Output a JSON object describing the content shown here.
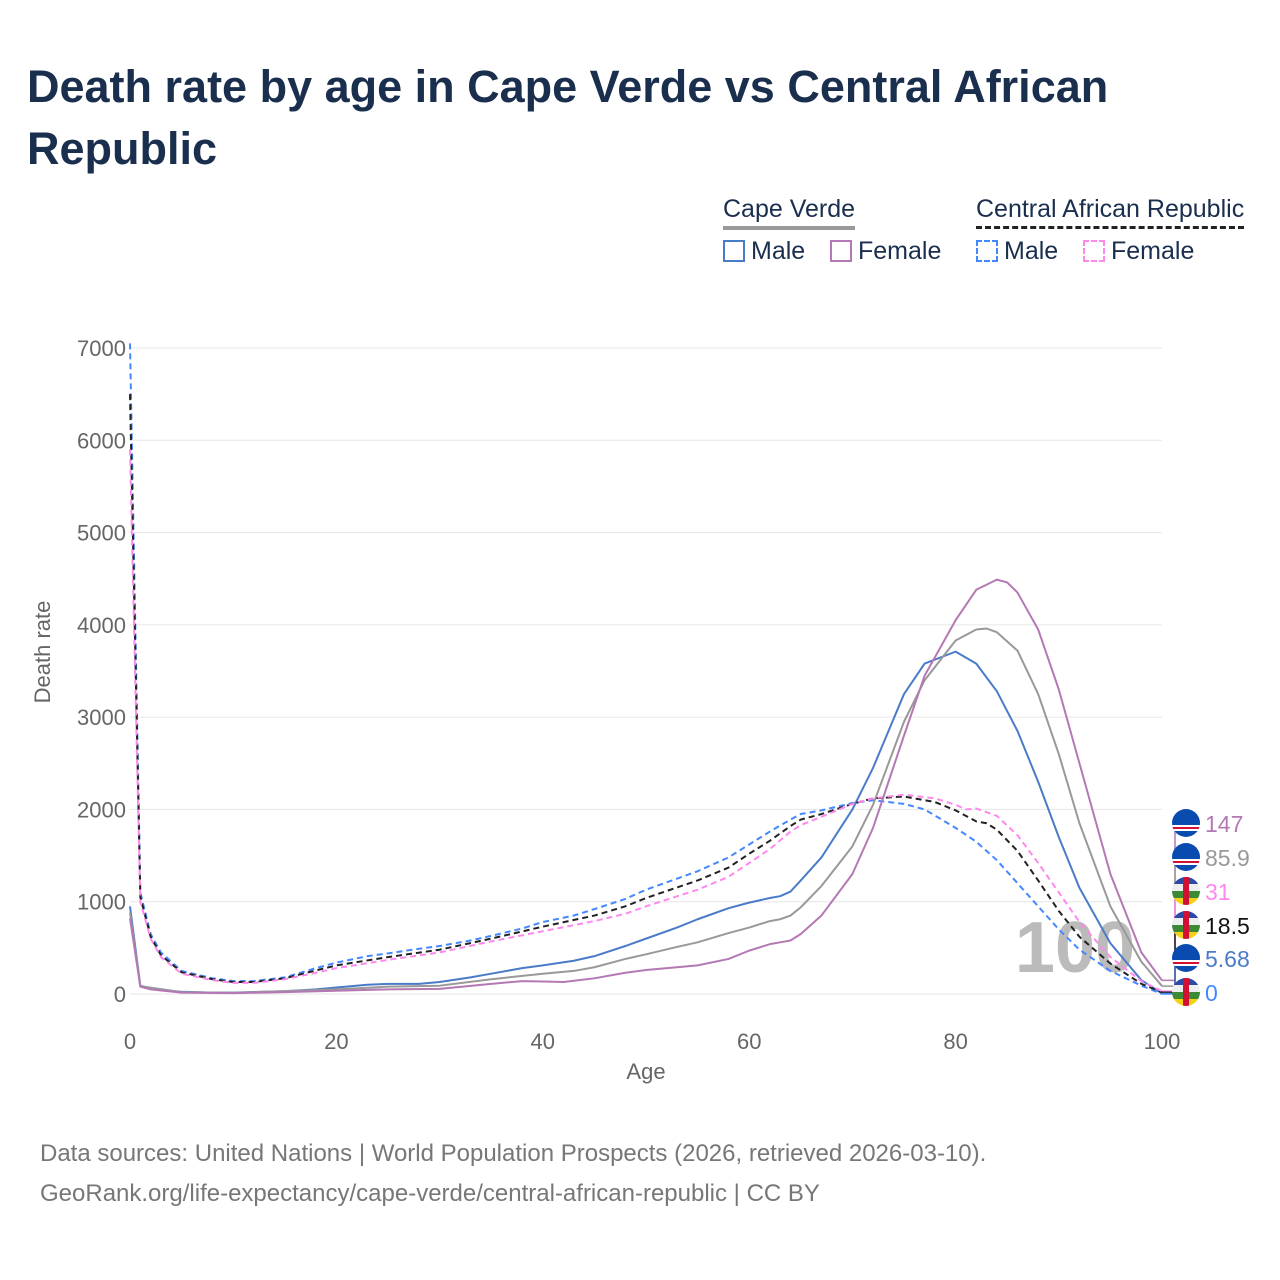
{
  "title": "Death rate by age in Cape Verde vs Central African Republic",
  "legend": {
    "groups": [
      {
        "name": "Cape Verde",
        "male": "Male",
        "female": "Female"
      },
      {
        "name": "Central African Republic",
        "male": "Male",
        "female": "Female"
      }
    ]
  },
  "footer": {
    "line1": "Data sources: United Nations | World Population Prospects (2026, retrieved 2026-03-10).",
    "line2": "GeoRank.org/life-expectancy/cape-verde/central-african-republic | CC BY"
  },
  "hover_label": "100",
  "chart_data": {
    "type": "line",
    "xlabel": "Age",
    "ylabel": "Death rate",
    "xlim": [
      0,
      100
    ],
    "ylim": [
      0,
      7000
    ],
    "xticks": [
      0,
      20,
      40,
      60,
      80,
      100
    ],
    "yticks": [
      0,
      1000,
      2000,
      3000,
      4000,
      5000,
      6000,
      7000
    ],
    "grid": "horizontal",
    "series": [
      {
        "name": "Cape Verde Female",
        "color": "#b478b4",
        "dash": false,
        "end_label": "147",
        "flag": "cv",
        "points": [
          [
            0,
            820
          ],
          [
            1,
            80
          ],
          [
            2,
            50
          ],
          [
            5,
            15
          ],
          [
            10,
            10
          ],
          [
            15,
            20
          ],
          [
            20,
            35
          ],
          [
            25,
            50
          ],
          [
            30,
            55
          ],
          [
            35,
            110
          ],
          [
            38,
            140
          ],
          [
            40,
            135
          ],
          [
            42,
            130
          ],
          [
            45,
            170
          ],
          [
            48,
            230
          ],
          [
            50,
            260
          ],
          [
            53,
            290
          ],
          [
            55,
            310
          ],
          [
            58,
            380
          ],
          [
            60,
            470
          ],
          [
            62,
            540
          ],
          [
            63,
            560
          ],
          [
            64,
            580
          ],
          [
            65,
            650
          ],
          [
            67,
            850
          ],
          [
            70,
            1300
          ],
          [
            72,
            1800
          ],
          [
            75,
            2800
          ],
          [
            77,
            3450
          ],
          [
            80,
            4050
          ],
          [
            82,
            4380
          ],
          [
            84,
            4490
          ],
          [
            85,
            4460
          ],
          [
            86,
            4350
          ],
          [
            88,
            3950
          ],
          [
            90,
            3300
          ],
          [
            92,
            2500
          ],
          [
            95,
            1300
          ],
          [
            98,
            450
          ],
          [
            100,
            147
          ]
        ]
      },
      {
        "name": "Cape Verde",
        "color": "#999999",
        "dash": false,
        "end_label": "85.9",
        "flag": "cv",
        "points": [
          [
            0,
            880
          ],
          [
            1,
            85
          ],
          [
            5,
            20
          ],
          [
            10,
            12
          ],
          [
            20,
            50
          ],
          [
            25,
            80
          ],
          [
            30,
            90
          ],
          [
            35,
            160
          ],
          [
            40,
            220
          ],
          [
            43,
            250
          ],
          [
            45,
            290
          ],
          [
            48,
            380
          ],
          [
            50,
            430
          ],
          [
            53,
            510
          ],
          [
            55,
            560
          ],
          [
            58,
            660
          ],
          [
            60,
            720
          ],
          [
            62,
            790
          ],
          [
            63,
            810
          ],
          [
            64,
            850
          ],
          [
            65,
            940
          ],
          [
            67,
            1170
          ],
          [
            70,
            1600
          ],
          [
            72,
            2050
          ],
          [
            75,
            2950
          ],
          [
            77,
            3400
          ],
          [
            80,
            3830
          ],
          [
            82,
            3950
          ],
          [
            83,
            3960
          ],
          [
            84,
            3920
          ],
          [
            86,
            3720
          ],
          [
            88,
            3250
          ],
          [
            90,
            2600
          ],
          [
            92,
            1850
          ],
          [
            95,
            950
          ],
          [
            98,
            350
          ],
          [
            100,
            85.9
          ]
        ]
      },
      {
        "name": "Central African Republic Female",
        "color": "#ff88ee",
        "dash": true,
        "end_label": "31",
        "flag": "car",
        "points": [
          [
            0,
            5900
          ],
          [
            1,
            1000
          ],
          [
            2,
            600
          ],
          [
            3,
            400
          ],
          [
            5,
            220
          ],
          [
            8,
            150
          ],
          [
            10,
            120
          ],
          [
            12,
            120
          ],
          [
            15,
            160
          ],
          [
            18,
            230
          ],
          [
            20,
            280
          ],
          [
            25,
            370
          ],
          [
            30,
            450
          ],
          [
            35,
            570
          ],
          [
            40,
            680
          ],
          [
            45,
            790
          ],
          [
            48,
            870
          ],
          [
            50,
            950
          ],
          [
            55,
            1130
          ],
          [
            58,
            1270
          ],
          [
            60,
            1420
          ],
          [
            62,
            1570
          ],
          [
            64,
            1760
          ],
          [
            65,
            1830
          ],
          [
            67,
            1920
          ],
          [
            70,
            2060
          ],
          [
            72,
            2120
          ],
          [
            75,
            2160
          ],
          [
            78,
            2120
          ],
          [
            80,
            2050
          ],
          [
            81,
            2000
          ],
          [
            82,
            2010
          ],
          [
            84,
            1930
          ],
          [
            86,
            1720
          ],
          [
            88,
            1420
          ],
          [
            90,
            1100
          ],
          [
            92,
            780
          ],
          [
            95,
            400
          ],
          [
            98,
            140
          ],
          [
            100,
            31
          ]
        ]
      },
      {
        "name": "Central African Republic",
        "color": "#222222",
        "dash": true,
        "end_label": "18.5",
        "flag": "car",
        "points": [
          [
            0,
            6500
          ],
          [
            1,
            1050
          ],
          [
            2,
            620
          ],
          [
            3,
            420
          ],
          [
            5,
            235
          ],
          [
            8,
            160
          ],
          [
            10,
            130
          ],
          [
            12,
            130
          ],
          [
            15,
            170
          ],
          [
            18,
            255
          ],
          [
            20,
            310
          ],
          [
            25,
            400
          ],
          [
            30,
            480
          ],
          [
            35,
            600
          ],
          [
            40,
            730
          ],
          [
            45,
            850
          ],
          [
            48,
            950
          ],
          [
            50,
            1040
          ],
          [
            55,
            1230
          ],
          [
            58,
            1370
          ],
          [
            60,
            1520
          ],
          [
            62,
            1660
          ],
          [
            64,
            1820
          ],
          [
            65,
            1890
          ],
          [
            67,
            1950
          ],
          [
            70,
            2060
          ],
          [
            72,
            2120
          ],
          [
            75,
            2140
          ],
          [
            78,
            2080
          ],
          [
            80,
            1990
          ],
          [
            82,
            1870
          ],
          [
            83,
            1850
          ],
          [
            84,
            1780
          ],
          [
            86,
            1550
          ],
          [
            88,
            1230
          ],
          [
            90,
            900
          ],
          [
            92,
            620
          ],
          [
            95,
            330
          ],
          [
            98,
            110
          ],
          [
            100,
            18.5
          ]
        ]
      },
      {
        "name": "Cape Verde Male",
        "color": "#4a7bc8",
        "dash": false,
        "end_label": "5.68",
        "flag": "cv",
        "points": [
          [
            0,
            950
          ],
          [
            1,
            90
          ],
          [
            2,
            60
          ],
          [
            3,
            40
          ],
          [
            5,
            25
          ],
          [
            8,
            15
          ],
          [
            10,
            15
          ],
          [
            15,
            30
          ],
          [
            18,
            50
          ],
          [
            20,
            70
          ],
          [
            23,
            100
          ],
          [
            25,
            110
          ],
          [
            28,
            110
          ],
          [
            30,
            130
          ],
          [
            33,
            180
          ],
          [
            35,
            220
          ],
          [
            38,
            280
          ],
          [
            40,
            310
          ],
          [
            43,
            360
          ],
          [
            45,
            410
          ],
          [
            48,
            520
          ],
          [
            50,
            600
          ],
          [
            53,
            720
          ],
          [
            55,
            810
          ],
          [
            58,
            930
          ],
          [
            60,
            990
          ],
          [
            62,
            1040
          ],
          [
            63,
            1060
          ],
          [
            64,
            1110
          ],
          [
            65,
            1230
          ],
          [
            67,
            1480
          ],
          [
            70,
            2000
          ],
          [
            72,
            2450
          ],
          [
            75,
            3250
          ],
          [
            77,
            3580
          ],
          [
            80,
            3710
          ],
          [
            82,
            3580
          ],
          [
            84,
            3280
          ],
          [
            86,
            2850
          ],
          [
            88,
            2300
          ],
          [
            90,
            1700
          ],
          [
            92,
            1150
          ],
          [
            95,
            550
          ],
          [
            98,
            150
          ],
          [
            100,
            5.68
          ]
        ]
      },
      {
        "name": "Central African Republic Male",
        "color": "#4488ff",
        "dash": true,
        "end_label": "0",
        "flag": "car",
        "points": [
          [
            0,
            7050
          ],
          [
            1,
            1100
          ],
          [
            2,
            650
          ],
          [
            3,
            450
          ],
          [
            5,
            250
          ],
          [
            8,
            170
          ],
          [
            10,
            140
          ],
          [
            12,
            140
          ],
          [
            15,
            180
          ],
          [
            18,
            280
          ],
          [
            20,
            340
          ],
          [
            23,
            410
          ],
          [
            25,
            440
          ],
          [
            28,
            490
          ],
          [
            30,
            520
          ],
          [
            33,
            580
          ],
          [
            35,
            630
          ],
          [
            38,
            710
          ],
          [
            40,
            780
          ],
          [
            43,
            850
          ],
          [
            45,
            920
          ],
          [
            48,
            1030
          ],
          [
            50,
            1130
          ],
          [
            53,
            1250
          ],
          [
            55,
            1330
          ],
          [
            58,
            1480
          ],
          [
            60,
            1620
          ],
          [
            62,
            1760
          ],
          [
            64,
            1890
          ],
          [
            65,
            1950
          ],
          [
            67,
            1990
          ],
          [
            70,
            2070
          ],
          [
            72,
            2100
          ],
          [
            75,
            2060
          ],
          [
            77,
            2000
          ],
          [
            80,
            1800
          ],
          [
            82,
            1650
          ],
          [
            84,
            1450
          ],
          [
            86,
            1200
          ],
          [
            88,
            950
          ],
          [
            90,
            700
          ],
          [
            92,
            480
          ],
          [
            95,
            250
          ],
          [
            98,
            90
          ],
          [
            100,
            0
          ]
        ]
      }
    ]
  }
}
